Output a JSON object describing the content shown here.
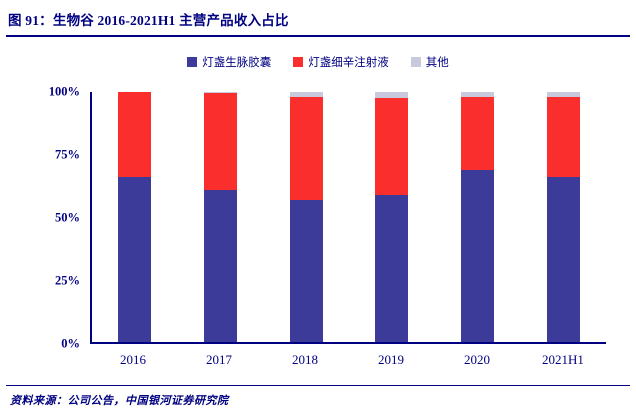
{
  "header": {
    "figure_label": "图 91：生物谷 2016-2021H1 主营产品收入占比"
  },
  "footer": {
    "source": "资料来源：公司公告，中国银河证券研究院"
  },
  "colors": {
    "accent_navy": "#000080",
    "series_capsule": "#3D3B99",
    "series_injection": "#FB2E2E",
    "series_other": "#C9C9DE"
  },
  "chart_data": {
    "type": "bar",
    "stacked": true,
    "title": "生物谷 2016-2021H1 主营产品收入占比",
    "categories": [
      "2016",
      "2017",
      "2018",
      "2019",
      "2020",
      "2021H1"
    ],
    "series": [
      {
        "name": "灯盏生脉胶囊",
        "color_key": "series_capsule",
        "values": [
          66,
          61,
          57,
          59,
          69,
          66
        ]
      },
      {
        "name": "灯盏细辛注射液",
        "color_key": "series_injection",
        "values": [
          34,
          38.5,
          41,
          38.5,
          29,
          32
        ]
      },
      {
        "name": "其他",
        "color_key": "series_other",
        "values": [
          0,
          0.5,
          2,
          2.5,
          2,
          2
        ]
      }
    ],
    "ylim": [
      0,
      100
    ],
    "yticks": [
      "0%",
      "25%",
      "50%",
      "75%",
      "100%"
    ],
    "legend_position": "top",
    "grid": false
  }
}
